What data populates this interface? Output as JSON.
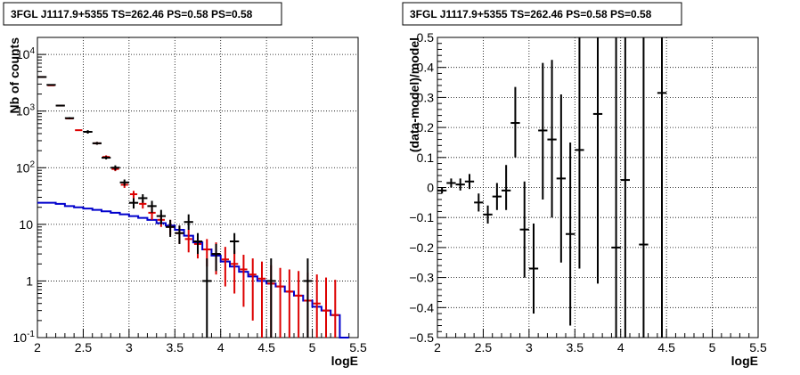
{
  "colors": {
    "data": "#000000",
    "model": "#dd0000",
    "background": "#0000cc"
  },
  "chart_data": [
    {
      "type": "scatter",
      "title": "3FGL J1117.9+5355 TS=262.46 PS=0.58 PS=0.58",
      "xlabel": "logE",
      "ylabel": "Nb of counts",
      "xlim": [
        2,
        5.5
      ],
      "ylim": [
        0.1,
        20000
      ],
      "yscale": "log",
      "grid": true,
      "x_tick_labels": [
        "2",
        "2.5",
        "3",
        "3.5",
        "4",
        "4.5",
        "5",
        "5.5"
      ],
      "y_tick_labels": [
        {
          "v": 0.1,
          "base": "10",
          "exp": "-1"
        },
        {
          "v": 1,
          "base": "1",
          "exp": ""
        },
        {
          "v": 10,
          "base": "10",
          "exp": ""
        },
        {
          "v": 100,
          "base": "10",
          "exp": "2"
        },
        {
          "v": 1000,
          "base": "10",
          "exp": "3"
        },
        {
          "v": 10000,
          "base": "10",
          "exp": "4"
        }
      ],
      "series": [
        {
          "role": "data",
          "color": "#000000",
          "points": [
            {
              "x": 2.05,
              "y": 4000,
              "lo": 3900,
              "hi": 4100
            },
            {
              "x": 2.15,
              "y": 2900,
              "lo": 2840,
              "hi": 2960
            },
            {
              "x": 2.25,
              "y": 1250,
              "lo": 1210,
              "hi": 1290
            },
            {
              "x": 2.35,
              "y": 750,
              "lo": 720,
              "hi": 780
            },
            {
              "x": 2.55,
              "y": 430,
              "lo": 400,
              "hi": 460
            },
            {
              "x": 2.65,
              "y": 270,
              "lo": 255,
              "hi": 285
            },
            {
              "x": 2.75,
              "y": 150,
              "lo": 140,
              "hi": 160
            },
            {
              "x": 2.85,
              "y": 100,
              "lo": 90,
              "hi": 110
            },
            {
              "x": 2.95,
              "y": 55,
              "lo": 48,
              "hi": 62
            },
            {
              "x": 3.05,
              "y": 24,
              "lo": 19,
              "hi": 29
            },
            {
              "x": 3.15,
              "y": 29,
              "lo": 24,
              "hi": 34
            },
            {
              "x": 3.25,
              "y": 21,
              "lo": 16,
              "hi": 26
            },
            {
              "x": 3.35,
              "y": 14,
              "lo": 10,
              "hi": 18
            },
            {
              "x": 3.45,
              "y": 9,
              "lo": 6,
              "hi": 12
            },
            {
              "x": 3.55,
              "y": 7,
              "lo": 4.5,
              "hi": 9.5
            },
            {
              "x": 3.65,
              "y": 11,
              "lo": 8,
              "hi": 15
            },
            {
              "x": 3.75,
              "y": 5,
              "lo": 3,
              "hi": 7
            },
            {
              "x": 3.85,
              "y": 1,
              "lo": 0.1,
              "hi": 2.5
            },
            {
              "x": 3.95,
              "y": 3,
              "lo": 1.5,
              "hi": 4.5
            },
            {
              "x": 4.15,
              "y": 5,
              "lo": 3,
              "hi": 7
            },
            {
              "x": 4.55,
              "y": 1,
              "lo": 0.1,
              "hi": 2.5
            },
            {
              "x": 4.95,
              "y": 1,
              "lo": 0.1,
              "hi": 2.5
            }
          ]
        },
        {
          "role": "model",
          "color": "#dd0000",
          "points": [
            {
              "x": 2.05,
              "y": 4000
            },
            {
              "x": 2.15,
              "y": 2850
            },
            {
              "x": 2.25,
              "y": 1250
            },
            {
              "x": 2.35,
              "y": 740
            },
            {
              "x": 2.45,
              "y": 460
            },
            {
              "x": 2.55,
              "y": 430,
              "lo": 410,
              "hi": 450
            },
            {
              "x": 2.65,
              "y": 270,
              "lo": 255,
              "hi": 285
            },
            {
              "x": 2.75,
              "y": 155,
              "lo": 145,
              "hi": 165
            },
            {
              "x": 2.85,
              "y": 95,
              "lo": 87,
              "hi": 103
            },
            {
              "x": 2.95,
              "y": 50,
              "lo": 44,
              "hi": 56
            },
            {
              "x": 3.05,
              "y": 34,
              "lo": 29,
              "hi": 39
            },
            {
              "x": 3.15,
              "y": 23,
              "lo": 19,
              "hi": 27
            },
            {
              "x": 3.25,
              "y": 16,
              "lo": 12,
              "hi": 20
            },
            {
              "x": 3.35,
              "y": 12,
              "lo": 9,
              "hi": 15
            },
            {
              "x": 3.45,
              "y": 9,
              "lo": 6.5,
              "hi": 12
            },
            {
              "x": 3.55,
              "y": 7,
              "lo": 4.5,
              "hi": 9.5
            },
            {
              "x": 3.65,
              "y": 5.5,
              "lo": 3.2,
              "hi": 8
            },
            {
              "x": 3.75,
              "y": 4.5,
              "lo": 2.5,
              "hi": 6.5
            },
            {
              "x": 3.85,
              "y": 3.6,
              "lo": 1.8,
              "hi": 5.5
            },
            {
              "x": 3.95,
              "y": 3,
              "lo": 1.3,
              "hi": 4.8
            },
            {
              "x": 4.05,
              "y": 2.4,
              "lo": 0.8,
              "hi": 4
            },
            {
              "x": 4.15,
              "y": 2,
              "lo": 0.6,
              "hi": 3.5
            },
            {
              "x": 4.25,
              "y": 1.6,
              "lo": 0.35,
              "hi": 2.9
            },
            {
              "x": 4.35,
              "y": 1.3,
              "lo": 0.2,
              "hi": 2.5
            },
            {
              "x": 4.45,
              "y": 1.1,
              "lo": 0.1,
              "hi": 2.2
            },
            {
              "x": 4.55,
              "y": 0.9,
              "lo": 0.1,
              "hi": 1.9
            },
            {
              "x": 4.65,
              "y": 0.8,
              "lo": 0.1,
              "hi": 1.7
            },
            {
              "x": 4.75,
              "y": 0.65,
              "lo": 0.1,
              "hi": 1.6
            },
            {
              "x": 4.85,
              "y": 0.55,
              "lo": 0.1,
              "hi": 1.5
            },
            {
              "x": 4.95,
              "y": 0.45,
              "lo": 0.1,
              "hi": 1.4
            },
            {
              "x": 5.05,
              "y": 0.4,
              "lo": 0.1,
              "hi": 1.3
            },
            {
              "x": 5.15,
              "y": 0.3,
              "lo": 0.1,
              "hi": 1.15
            },
            {
              "x": 5.25,
              "y": 0.25,
              "lo": 0.1,
              "hi": 1.05
            }
          ]
        },
        {
          "role": "background",
          "color": "#0000cc",
          "style": "step",
          "bin_width": 0.1,
          "points": [
            {
              "x": 2.05,
              "y": 24
            },
            {
              "x": 2.15,
              "y": 24
            },
            {
              "x": 2.25,
              "y": 23
            },
            {
              "x": 2.35,
              "y": 21
            },
            {
              "x": 2.45,
              "y": 20
            },
            {
              "x": 2.55,
              "y": 19
            },
            {
              "x": 2.65,
              "y": 18
            },
            {
              "x": 2.75,
              "y": 17
            },
            {
              "x": 2.85,
              "y": 16
            },
            {
              "x": 2.95,
              "y": 15
            },
            {
              "x": 3.05,
              "y": 14
            },
            {
              "x": 3.15,
              "y": 13
            },
            {
              "x": 3.25,
              "y": 12
            },
            {
              "x": 3.35,
              "y": 10.5
            },
            {
              "x": 3.45,
              "y": 9.5
            },
            {
              "x": 3.55,
              "y": 8
            },
            {
              "x": 3.65,
              "y": 6.3
            },
            {
              "x": 3.75,
              "y": 4.8
            },
            {
              "x": 3.85,
              "y": 3.6
            },
            {
              "x": 3.95,
              "y": 2.8
            },
            {
              "x": 4.05,
              "y": 2.2
            },
            {
              "x": 4.15,
              "y": 1.8
            },
            {
              "x": 4.25,
              "y": 1.45
            },
            {
              "x": 4.35,
              "y": 1.2
            },
            {
              "x": 4.45,
              "y": 1.0
            },
            {
              "x": 4.55,
              "y": 0.9
            },
            {
              "x": 4.65,
              "y": 0.8
            },
            {
              "x": 4.75,
              "y": 0.65
            },
            {
              "x": 4.85,
              "y": 0.55
            },
            {
              "x": 4.95,
              "y": 0.45
            },
            {
              "x": 5.05,
              "y": 0.35
            },
            {
              "x": 5.15,
              "y": 0.3
            },
            {
              "x": 5.25,
              "y": 0.25
            },
            {
              "x": 5.35,
              "y": 0.1
            }
          ]
        }
      ]
    },
    {
      "type": "scatter",
      "title": "3FGL J1117.9+5355 TS=262.46 PS=0.58 PS=0.58",
      "xlabel": "logE",
      "ylabel": "(data-model)/model",
      "xlim": [
        2,
        5.5
      ],
      "ylim": [
        -0.5,
        0.5
      ],
      "grid": true,
      "x_tick_labels": [
        "2",
        "2.5",
        "3",
        "3.5",
        "4",
        "4.5",
        "5",
        "5.5"
      ],
      "y_tick_labels": [
        "-0.5",
        "-0.4",
        "-0.3",
        "-0.2",
        "-0.1",
        "0",
        "0.1",
        "0.2",
        "0.3",
        "0.4",
        "0.5"
      ],
      "series": [
        {
          "role": "residuals",
          "color": "#000000",
          "points": [
            {
              "x": 2.05,
              "y": -0.01,
              "lo": -0.02,
              "hi": 0.0
            },
            {
              "x": 2.15,
              "y": 0.015,
              "lo": 0.0,
              "hi": 0.03
            },
            {
              "x": 2.25,
              "y": 0.01,
              "lo": -0.01,
              "hi": 0.03
            },
            {
              "x": 2.35,
              "y": 0.02,
              "lo": -0.005,
              "hi": 0.045
            },
            {
              "x": 2.45,
              "y": -0.05,
              "lo": -0.08,
              "hi": -0.02
            },
            {
              "x": 2.55,
              "y": -0.09,
              "lo": -0.12,
              "hi": -0.06
            },
            {
              "x": 2.65,
              "y": -0.03,
              "lo": -0.075,
              "hi": 0.015
            },
            {
              "x": 2.75,
              "y": -0.01,
              "lo": -0.075,
              "hi": 0.075
            },
            {
              "x": 2.85,
              "y": 0.215,
              "lo": 0.1,
              "hi": 0.335
            },
            {
              "x": 2.95,
              "y": -0.14,
              "lo": -0.3,
              "hi": 0.02
            },
            {
              "x": 3.05,
              "y": -0.27,
              "lo": -0.42,
              "hi": -0.12
            },
            {
              "x": 3.15,
              "y": 0.19,
              "lo": -0.04,
              "hi": 0.415
            },
            {
              "x": 3.25,
              "y": 0.16,
              "lo": -0.1,
              "hi": 0.425
            },
            {
              "x": 3.35,
              "y": 0.03,
              "lo": -0.25,
              "hi": 0.31
            },
            {
              "x": 3.45,
              "y": -0.155,
              "lo": -0.46,
              "hi": 0.15
            },
            {
              "x": 3.55,
              "y": 0.125,
              "lo": -0.27,
              "hi": 0.5
            },
            {
              "x": 3.75,
              "y": 0.245,
              "lo": -0.32,
              "hi": 0.5
            },
            {
              "x": 3.95,
              "y": -0.2,
              "lo": -0.5,
              "hi": 0.5
            },
            {
              "x": 4.05,
              "y": 0.025,
              "lo": -0.5,
              "hi": 0.5
            },
            {
              "x": 4.25,
              "y": -0.19,
              "lo": -0.5,
              "hi": 0.5
            },
            {
              "x": 4.45,
              "y": 0.315,
              "lo": -0.5,
              "hi": 0.5
            }
          ]
        }
      ]
    }
  ]
}
